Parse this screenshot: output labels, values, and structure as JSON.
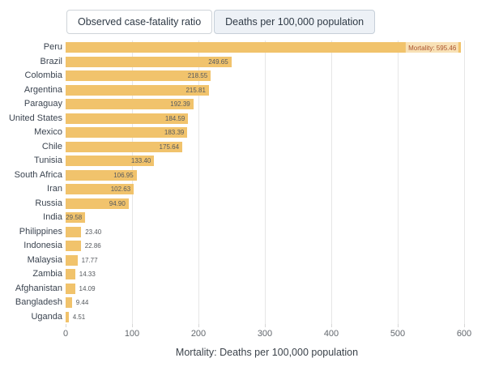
{
  "toolbar": {
    "buttons": [
      {
        "label": "Observed case-fatality ratio",
        "selected": false
      },
      {
        "label": "Deaths per 100,000 population",
        "selected": true
      }
    ]
  },
  "chart_data": {
    "type": "bar",
    "orientation": "horizontal",
    "title": "",
    "xlabel": "Mortality: Deaths per 100,000 population",
    "ylabel": "",
    "xlim": [
      0,
      600
    ],
    "xticks": [
      0,
      100,
      200,
      300,
      400,
      500,
      600
    ],
    "grid": true,
    "legend": false,
    "categories": [
      "Peru",
      "Brazil",
      "Colombia",
      "Argentina",
      "Paraguay",
      "United States",
      "Mexico",
      "Chile",
      "Tunisia",
      "South Africa",
      "Iran",
      "Russia",
      "India",
      "Philippines",
      "Indonesia",
      "Malaysia",
      "Zambia",
      "Afghanistan",
      "Bangladesh",
      "Uganda"
    ],
    "values": [
      595.46,
      249.65,
      218.55,
      215.81,
      192.39,
      184.59,
      183.39,
      175.64,
      133.4,
      106.95,
      102.63,
      94.9,
      29.58,
      23.4,
      22.86,
      17.77,
      14.33,
      14.09,
      9.44,
      4.51
    ],
    "value_labels": [
      "595.46",
      "249.65",
      "218.55",
      "215.81",
      "192.39",
      "184.59",
      "183.39",
      "175.64",
      "133.40",
      "106.95",
      "102.63",
      "94.90",
      "29.58",
      "23.40",
      "22.86",
      "17.77",
      "14.33",
      "14.09",
      "9.44",
      "4.51"
    ],
    "tooltip": {
      "category": "Peru",
      "text": "Mortality: 595.46"
    },
    "colors": {
      "bar": "#f1c36c",
      "grid": "#e6e6e6",
      "tick": "#d6d6d6",
      "category_label": "#3b4450",
      "value_label": "#55595e",
      "tick_label": "#63686e",
      "tooltip_text": "#a9502a",
      "axis_title": "#3c434b"
    }
  }
}
